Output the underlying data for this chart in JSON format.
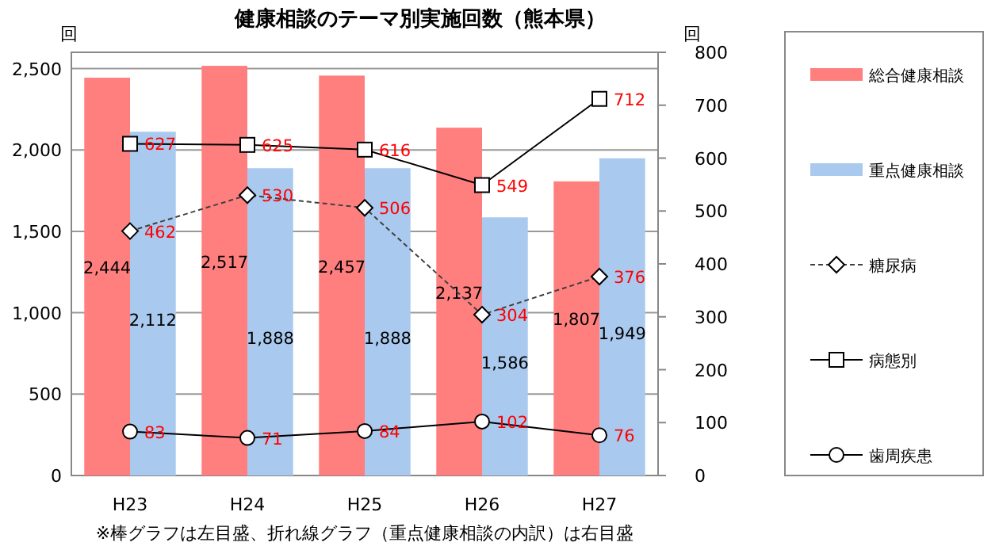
{
  "chart_data": {
    "type": "bar",
    "title": "健康相談のテーマ別実施回数（熊本県）",
    "ylabel": "回",
    "y2label": "回",
    "categories": [
      "H23",
      "H24",
      "H25",
      "H26",
      "H27"
    ],
    "series": [
      {
        "name": "総合健康相談",
        "color": "#ff7f7f",
        "values": [
          2444,
          2517,
          2457,
          2137,
          1807
        ],
        "value_labels": [
          "2,444",
          "2,517",
          "2,457",
          "2,137",
          "1,807"
        ]
      },
      {
        "name": "重点健康相談",
        "color": "#a9c9ee",
        "values": [
          2112,
          1888,
          1888,
          1586,
          1949
        ],
        "value_labels": [
          "2,112",
          "1,888",
          "1,888",
          "1,586",
          "1,949"
        ]
      },
      {
        "name": "糖尿病",
        "type": "line",
        "axis": "y2",
        "color": "#404040",
        "marker": "diamond",
        "line_style": "dashed",
        "values": [
          462,
          530,
          506,
          304,
          376
        ],
        "value_labels": [
          "462",
          "530",
          "506",
          "304",
          "376"
        ]
      },
      {
        "name": "病態別",
        "type": "line",
        "axis": "y2",
        "color": "#000000",
        "marker": "square",
        "line_style": "solid",
        "values": [
          627,
          625,
          616,
          549,
          712
        ],
        "value_labels": [
          "627",
          "625",
          "616",
          "549",
          "712"
        ]
      },
      {
        "name": "歯周疾患",
        "type": "line",
        "axis": "y2",
        "color": "#000000",
        "marker": "circle",
        "line_style": "solid",
        "values": [
          83,
          71,
          84,
          102,
          76
        ],
        "value_labels": [
          "83",
          "71",
          "84",
          "102",
          "76"
        ]
      }
    ],
    "ylim": [
      0,
      2600
    ],
    "yticks": [
      0,
      500,
      {
        "value": 1000,
        "label": "1,000"
      },
      {
        "value": 1500,
        "label": "1,500"
      },
      {
        "value": 2000,
        "label": "2,000"
      },
      {
        "value": 2500,
        "label": "2,500"
      }
    ],
    "y2lim": [
      0,
      800
    ],
    "y2ticks": [
      0,
      100,
      200,
      300,
      400,
      500,
      600,
      700,
      800
    ],
    "grid": "y",
    "legend": "right",
    "annotations": [
      "※棒グラフは左目盛、折れ線グラフ（重点健康相談の内訳）は右目盛"
    ]
  }
}
